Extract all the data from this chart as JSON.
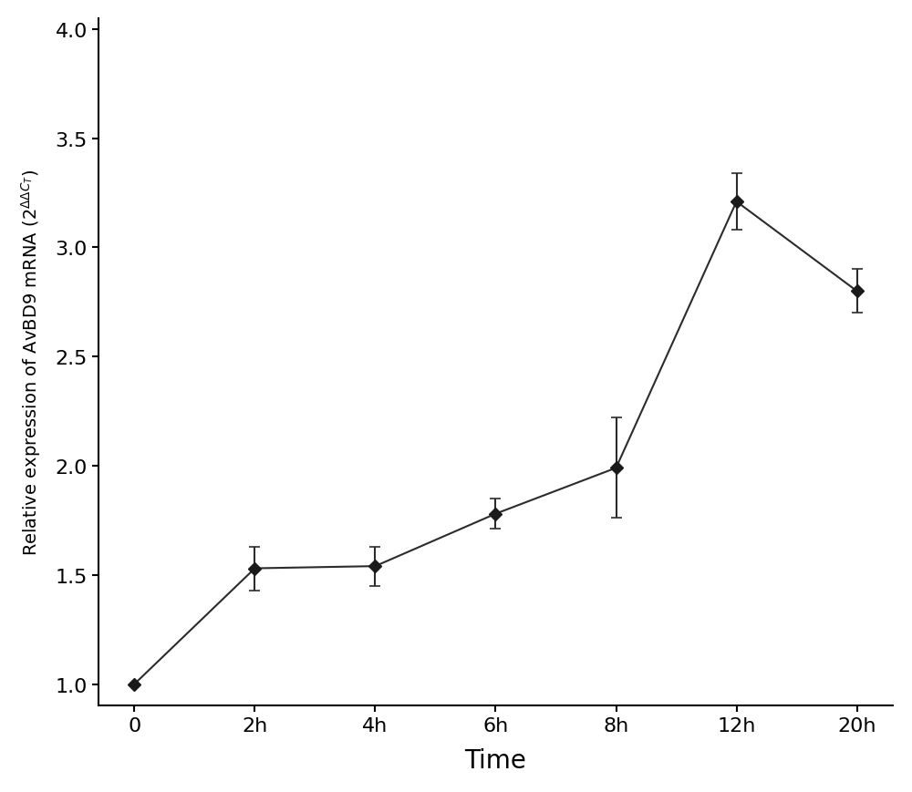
{
  "x_labels": [
    "0",
    "2h",
    "4h",
    "6h",
    "8h",
    "12h",
    "20h"
  ],
  "x_positions": [
    0,
    1,
    2,
    3,
    4,
    5,
    6
  ],
  "y_values": [
    1.0,
    1.53,
    1.54,
    1.78,
    1.99,
    3.21,
    2.8
  ],
  "y_errors": [
    0.0,
    0.1,
    0.09,
    0.07,
    0.23,
    0.13,
    0.1
  ],
  "xlabel": "Time",
  "ylabel_text": "Relative expression of AvBD9 mRNA ($2^{\\Delta\\Delta C_T}$)",
  "ylim": [
    0.9,
    4.05
  ],
  "yticks": [
    1.0,
    1.5,
    2.0,
    2.5,
    3.0,
    3.5,
    4.0
  ],
  "ytick_labels": [
    "1.0",
    "1.5",
    "2.0",
    "2.5",
    "3.0",
    "3.5",
    "4.0"
  ],
  "line_color": "#2c2c2c",
  "marker_color": "#1a1a1a",
  "background_color": "#ffffff",
  "xlabel_fontsize": 20,
  "ylabel_fontsize": 14,
  "tick_fontsize": 16
}
